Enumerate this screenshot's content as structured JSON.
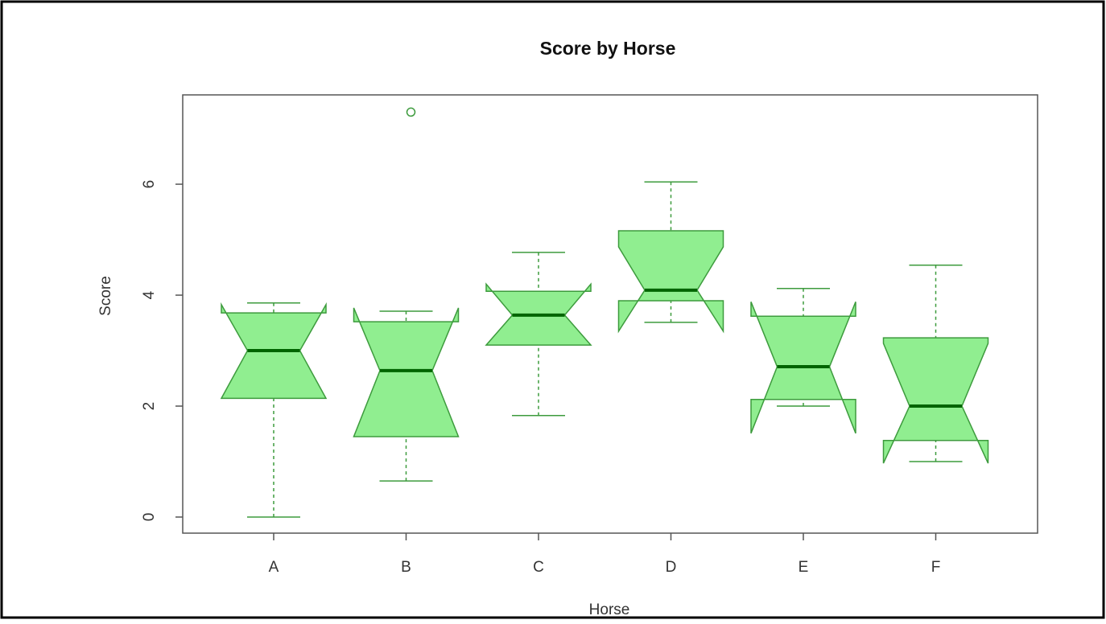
{
  "chart_data": {
    "type": "boxplot",
    "title": "Score by Horse",
    "xlabel": "Horse",
    "ylabel": "Score",
    "categories": [
      "A",
      "B",
      "C",
      "D",
      "E",
      "F"
    ],
    "boxes": [
      {
        "low": 0,
        "q1": 2.14,
        "median": 3.0,
        "q3": 3.68,
        "high": 3.86,
        "notch_low": 2.14,
        "notch_high": 3.83
      },
      {
        "low": 0.65,
        "q1": 1.45,
        "median": 2.64,
        "q3": 3.52,
        "high": 3.71,
        "notch_low": 1.45,
        "notch_high": 3.77
      },
      {
        "low": 1.83,
        "q1": 3.1,
        "median": 3.64,
        "q3": 4.07,
        "high": 4.77,
        "notch_low": 3.1,
        "notch_high": 4.2
      },
      {
        "low": 3.51,
        "q1": 3.9,
        "median": 4.09,
        "q3": 5.16,
        "high": 6.04,
        "notch_low": 3.35,
        "notch_high": 4.87
      },
      {
        "low": 2.0,
        "q1": 2.12,
        "median": 2.71,
        "q3": 3.62,
        "high": 4.12,
        "notch_low": 1.51,
        "notch_high": 3.88
      },
      {
        "low": 1.0,
        "q1": 1.38,
        "median": 2.0,
        "q3": 3.23,
        "high": 4.54,
        "notch_low": 0.97,
        "notch_high": 3.13
      }
    ],
    "outliers": [
      [],
      [
        7.3
      ],
      [],
      [],
      [],
      []
    ],
    "color": "#90ee90",
    "edge_color": "#3d9b3d",
    "median_color": "#006400",
    "ylim": [
      -0.29,
      7.61
    ],
    "yticks": [
      0,
      2,
      4,
      6
    ]
  }
}
